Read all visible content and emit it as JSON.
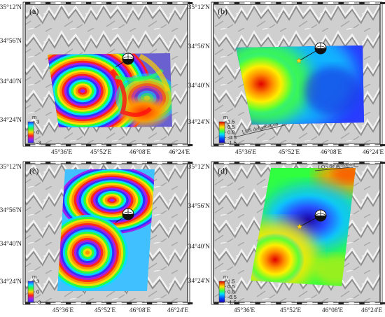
{
  "panels": [
    {
      "letter": "(a)",
      "cb_unit": "m",
      "cb_ticks": [
        "3",
        "0",
        "-3"
      ],
      "los": ""
    },
    {
      "letter": "(b)",
      "cb_unit": "m",
      "cb_ticks": [
        "1.5",
        "0.5",
        "0.0",
        "-0.5",
        "-1.5"
      ],
      "los": "LOS deformation"
    },
    {
      "letter": "(c)",
      "cb_unit": "m",
      "cb_ticks": [
        "3",
        "0",
        "-3"
      ],
      "los": ""
    },
    {
      "letter": "(d)",
      "cb_unit": "m",
      "cb_ticks": [
        "1.5",
        "0.5",
        "0.0",
        "-0.5",
        "-1.5"
      ],
      "los": "LOS deformation"
    }
  ],
  "axes": {
    "lat_labels": [
      "35°12'N",
      "34°56'N",
      "34°40'N",
      "34°24'N"
    ],
    "lon_labels": [
      "45°36'E",
      "45°52'E",
      "46°08'E",
      "46°24'E"
    ]
  },
  "colors": {
    "frame": "#222222",
    "hillshade_light": "#e4e4e4",
    "hillshade_dark": "#9a9a9a",
    "epicenter_star": "#ffd21e"
  },
  "icons": [
    "focal-mechanism-icon",
    "epicenter-star-icon"
  ]
}
